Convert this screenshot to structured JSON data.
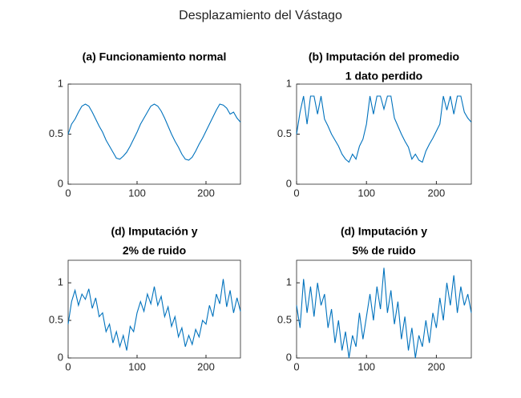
{
  "title": "Desplazamiento del Vástago",
  "chart_data": [
    {
      "type": "line",
      "title": [
        "(a) Funcionamiento normal"
      ],
      "color": "#0072bd",
      "x": [
        0,
        5,
        10,
        15,
        20,
        25,
        30,
        35,
        40,
        45,
        50,
        55,
        60,
        65,
        70,
        75,
        80,
        85,
        90,
        95,
        100,
        105,
        110,
        115,
        120,
        125,
        130,
        135,
        140,
        145,
        150,
        155,
        160,
        165,
        170,
        175,
        180,
        185,
        190,
        195,
        200,
        205,
        210,
        215,
        220,
        225,
        230,
        235,
        240,
        245,
        250
      ],
      "values": [
        0.5,
        0.6,
        0.65,
        0.72,
        0.78,
        0.8,
        0.78,
        0.72,
        0.65,
        0.58,
        0.52,
        0.44,
        0.38,
        0.32,
        0.26,
        0.25,
        0.28,
        0.32,
        0.38,
        0.45,
        0.52,
        0.6,
        0.66,
        0.72,
        0.78,
        0.8,
        0.78,
        0.73,
        0.66,
        0.58,
        0.5,
        0.43,
        0.37,
        0.3,
        0.25,
        0.24,
        0.27,
        0.33,
        0.4,
        0.46,
        0.53,
        0.6,
        0.67,
        0.74,
        0.8,
        0.79,
        0.76,
        0.7,
        0.72,
        0.66,
        0.62
      ],
      "xlim": [
        0,
        250
      ],
      "xticks": [
        0,
        100,
        200
      ],
      "ylim": [
        0,
        1
      ],
      "yticks": [
        0,
        0.5,
        1
      ]
    },
    {
      "type": "line",
      "title": [
        "(b) Imputación del promedio",
        "1 dato perdido"
      ],
      "color": "#0072bd",
      "x": [
        0,
        5,
        10,
        15,
        20,
        25,
        30,
        35,
        40,
        45,
        50,
        55,
        60,
        65,
        70,
        75,
        80,
        85,
        90,
        95,
        100,
        105,
        110,
        115,
        120,
        125,
        130,
        135,
        140,
        145,
        150,
        155,
        160,
        165,
        170,
        175,
        180,
        185,
        190,
        195,
        200,
        205,
        210,
        215,
        220,
        225,
        230,
        235,
        240,
        245,
        250
      ],
      "values": [
        0.5,
        0.72,
        0.88,
        0.6,
        0.88,
        0.88,
        0.7,
        0.88,
        0.65,
        0.58,
        0.5,
        0.44,
        0.38,
        0.3,
        0.25,
        0.22,
        0.3,
        0.25,
        0.38,
        0.45,
        0.6,
        0.88,
        0.7,
        0.88,
        0.88,
        0.75,
        0.88,
        0.88,
        0.66,
        0.58,
        0.5,
        0.43,
        0.37,
        0.25,
        0.3,
        0.24,
        0.22,
        0.33,
        0.4,
        0.46,
        0.53,
        0.6,
        0.88,
        0.74,
        0.88,
        0.7,
        0.88,
        0.88,
        0.72,
        0.66,
        0.62
      ],
      "xlim": [
        0,
        250
      ],
      "xticks": [
        0,
        100,
        200
      ],
      "ylim": [
        0,
        1
      ],
      "yticks": [
        0,
        0.5,
        1
      ]
    },
    {
      "type": "line",
      "title": [
        "(d) Imputación y",
        "2% de ruido"
      ],
      "color": "#0072bd",
      "x": [
        0,
        5,
        10,
        15,
        20,
        25,
        30,
        35,
        40,
        45,
        50,
        55,
        60,
        65,
        70,
        75,
        80,
        85,
        90,
        95,
        100,
        105,
        110,
        115,
        120,
        125,
        130,
        135,
        140,
        145,
        150,
        155,
        160,
        165,
        170,
        175,
        180,
        185,
        190,
        195,
        200,
        205,
        210,
        215,
        220,
        225,
        230,
        235,
        240,
        245,
        250
      ],
      "values": [
        0.45,
        0.75,
        0.9,
        0.7,
        0.85,
        0.78,
        0.92,
        0.66,
        0.8,
        0.55,
        0.6,
        0.35,
        0.45,
        0.2,
        0.35,
        0.15,
        0.3,
        0.1,
        0.42,
        0.35,
        0.6,
        0.75,
        0.62,
        0.85,
        0.72,
        0.95,
        0.7,
        0.82,
        0.55,
        0.68,
        0.42,
        0.55,
        0.28,
        0.4,
        0.15,
        0.3,
        0.18,
        0.38,
        0.28,
        0.5,
        0.45,
        0.7,
        0.55,
        0.85,
        0.72,
        1.05,
        0.68,
        0.9,
        0.6,
        0.8,
        0.62
      ],
      "xlim": [
        0,
        250
      ],
      "xticks": [
        0,
        100,
        200
      ],
      "ylim": [
        0,
        1.3
      ],
      "yticks": [
        0,
        0.5,
        1
      ]
    },
    {
      "type": "line",
      "title": [
        "(d) Imputación y",
        "5% de ruido"
      ],
      "color": "#0072bd",
      "x": [
        0,
        5,
        10,
        15,
        20,
        25,
        30,
        35,
        40,
        45,
        50,
        55,
        60,
        65,
        70,
        75,
        80,
        85,
        90,
        95,
        100,
        105,
        110,
        115,
        120,
        125,
        130,
        135,
        140,
        145,
        150,
        155,
        160,
        165,
        170,
        175,
        180,
        185,
        190,
        195,
        200,
        205,
        210,
        215,
        220,
        225,
        230,
        235,
        240,
        245,
        250
      ],
      "values": [
        0.7,
        0.4,
        1.05,
        0.6,
        0.95,
        0.55,
        1.0,
        0.7,
        0.85,
        0.4,
        0.65,
        0.2,
        0.5,
        0.1,
        0.35,
        0.0,
        0.3,
        0.15,
        0.6,
        0.25,
        0.55,
        0.85,
        0.5,
        0.95,
        0.65,
        1.2,
        0.6,
        0.9,
        0.45,
        0.75,
        0.25,
        0.55,
        0.1,
        0.4,
        0.0,
        0.3,
        0.15,
        0.5,
        0.2,
        0.6,
        0.4,
        0.8,
        0.5,
        1.0,
        0.7,
        1.1,
        0.6,
        0.95,
        0.7,
        0.85,
        0.6
      ],
      "xlim": [
        0,
        250
      ],
      "xticks": [
        0,
        100,
        200
      ],
      "ylim": [
        0,
        1.3
      ],
      "yticks": [
        0,
        0.5,
        1
      ]
    }
  ]
}
